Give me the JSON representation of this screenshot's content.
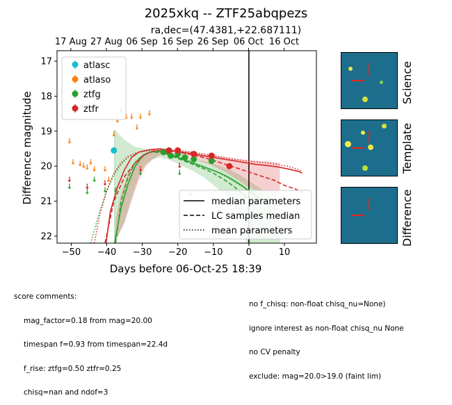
{
  "chart_data": {
    "type": "scatter",
    "title": "2025xkq -- ZTF25abqpezs",
    "subtitle": "ra,dec=(47.4381,+22.687111)",
    "xlabel": "Days before 06-Oct-25 18:39",
    "ylabel": "Difference magnitude",
    "xlim": [
      -54,
      19
    ],
    "ylim": [
      22.2,
      16.7
    ],
    "x_ticks": [
      -50,
      -40,
      -30,
      -20,
      -10,
      0,
      10
    ],
    "y_ticks": [
      17,
      18,
      19,
      20,
      21,
      22
    ],
    "top_axis_ticks": [
      {
        "x": -50.1,
        "label": "17 Aug"
      },
      {
        "x": -40.1,
        "label": "27 Aug"
      },
      {
        "x": -30.1,
        "label": "06 Sep"
      },
      {
        "x": -20.1,
        "label": "16 Sep"
      },
      {
        "x": -10.1,
        "label": "26 Sep"
      },
      {
        "x": -0.1,
        "label": "06 Oct"
      },
      {
        "x": 9.9,
        "label": "16 Oct"
      }
    ],
    "reference_line_x": 0,
    "colors": {
      "atlasc": "#17becf",
      "atlaso": "#ff7f0e",
      "ztfg": "#2ca02c",
      "ztfr": "#d62728"
    },
    "legend_position": "top-left",
    "legend": [
      {
        "name": "atlasc",
        "color": "#17becf"
      },
      {
        "name": "atlaso",
        "color": "#ff7f0e"
      },
      {
        "name": "ztfg",
        "color": "#2ca02c"
      },
      {
        "name": "ztfr",
        "color": "#d62728"
      }
    ],
    "style_legend_position": "bottom-right",
    "style_legend": [
      {
        "label": "median parameters",
        "dash": "solid"
      },
      {
        "label": "LC samples median",
        "dash": "dashed"
      },
      {
        "label": "mean parameters",
        "dash": "dotted"
      }
    ],
    "upper_limits": {
      "atlaso": [
        [
          -50.5,
          19.2
        ],
        [
          -49.5,
          19.8
        ],
        [
          -47.5,
          19.85
        ],
        [
          -46.5,
          19.9
        ],
        [
          -45.5,
          19.95
        ],
        [
          -44.5,
          19.8
        ],
        [
          -43.5,
          20.0
        ],
        [
          -40.5,
          20.0
        ],
        [
          -39.5,
          20.3
        ],
        [
          -38.0,
          19.0
        ],
        [
          -37.0,
          18.6
        ],
        [
          -36.0,
          18.3
        ],
        [
          -34.5,
          18.5
        ],
        [
          -33.0,
          18.5
        ],
        [
          -31.5,
          18.8
        ],
        [
          -30.5,
          18.5
        ],
        [
          -28.0,
          18.4
        ]
      ],
      "ztfg": [
        [
          -50.5,
          20.5
        ],
        [
          -45.5,
          20.65
        ],
        [
          -43.5,
          20.3
        ],
        [
          -40.5,
          20.6
        ],
        [
          -37.5,
          20.6
        ],
        [
          -30.5,
          20.1
        ],
        [
          -19.5,
          20.1
        ],
        [
          -16.5,
          20.7
        ]
      ],
      "ztfr": [
        [
          -50.5,
          20.3
        ],
        [
          -45.5,
          20.5
        ],
        [
          -40.5,
          20.4
        ],
        [
          -30.5,
          20.0
        ],
        [
          -19.5,
          19.9
        ]
      ]
    },
    "detections": {
      "atlasc": [
        [
          -38.0,
          19.55,
          0.08
        ]
      ],
      "ztfg": [
        [
          -24.0,
          19.6,
          0.05
        ],
        [
          -22.0,
          19.7,
          0.05
        ],
        [
          -20.0,
          19.65,
          0.05
        ],
        [
          -18.0,
          19.75,
          0.05
        ],
        [
          -15.5,
          19.8,
          0.05
        ],
        [
          -10.5,
          19.85,
          0.06
        ]
      ],
      "ztfr": [
        [
          -22.5,
          19.55,
          0.06
        ],
        [
          -20.0,
          19.55,
          0.06
        ],
        [
          -15.5,
          19.65,
          0.06
        ],
        [
          -10.5,
          19.7,
          0.06
        ],
        [
          -5.5,
          20.0,
          0.07
        ]
      ]
    },
    "model_curves": {
      "ztfr_median": [
        [
          -40.2,
          22.2
        ],
        [
          -39,
          21.3
        ],
        [
          -37,
          20.6
        ],
        [
          -35,
          20.1
        ],
        [
          -33,
          19.75
        ],
        [
          -31,
          19.6
        ],
        [
          -28,
          19.53
        ],
        [
          -25,
          19.5
        ],
        [
          -22,
          19.55
        ],
        [
          -19,
          19.6
        ],
        [
          -16,
          19.65
        ],
        [
          -13,
          19.7
        ],
        [
          -10,
          19.75
        ],
        [
          -7,
          19.8
        ],
        [
          -4,
          19.85
        ],
        [
          -1,
          19.9
        ],
        [
          2,
          19.95
        ],
        [
          5,
          19.98
        ],
        [
          8,
          20.02
        ],
        [
          11,
          20.08
        ],
        [
          14,
          20.15
        ],
        [
          15,
          20.2
        ]
      ],
      "ztfr_samples": [
        [
          -40.5,
          22.2
        ],
        [
          -38,
          21.0
        ],
        [
          -35,
          20.3
        ],
        [
          -32,
          19.9
        ],
        [
          -29,
          19.65
        ],
        [
          -26,
          19.55
        ],
        [
          -23,
          19.55
        ],
        [
          -20,
          19.6
        ],
        [
          -17,
          19.65
        ],
        [
          -14,
          19.72
        ],
        [
          -11,
          19.8
        ],
        [
          -8,
          19.9
        ],
        [
          -5,
          20.0
        ],
        [
          -2,
          20.1
        ],
        [
          1,
          20.2
        ],
        [
          4,
          20.3
        ],
        [
          7,
          20.4
        ],
        [
          10,
          20.55
        ],
        [
          13,
          20.65
        ],
        [
          15,
          20.75
        ]
      ],
      "ztfr_mean": [
        [
          -43.5,
          22.2
        ],
        [
          -42,
          21.4
        ],
        [
          -40,
          20.7
        ],
        [
          -38,
          20.2
        ],
        [
          -36,
          19.9
        ],
        [
          -34,
          19.72
        ],
        [
          -31,
          19.6
        ],
        [
          -28,
          19.55
        ],
        [
          -25,
          19.54
        ],
        [
          -22,
          19.56
        ],
        [
          -19,
          19.58
        ],
        [
          -16,
          19.6
        ],
        [
          -13,
          19.65
        ],
        [
          -10,
          19.7
        ],
        [
          -7,
          19.75
        ],
        [
          -4,
          19.8
        ],
        [
          -1,
          19.85
        ],
        [
          2,
          19.88
        ],
        [
          5,
          19.9
        ],
        [
          8,
          19.95
        ],
        [
          11,
          20.0
        ],
        [
          14,
          20.1
        ],
        [
          15,
          20.15
        ]
      ],
      "ztfg_median": [
        [
          -37.8,
          22.2
        ],
        [
          -36,
          21.2
        ],
        [
          -34,
          20.5
        ],
        [
          -32,
          20.0
        ],
        [
          -30,
          19.72
        ],
        [
          -28,
          19.6
        ],
        [
          -26,
          19.57
        ],
        [
          -24,
          19.6
        ],
        [
          -22,
          19.67
        ],
        [
          -20,
          19.75
        ],
        [
          -18,
          19.83
        ],
        [
          -16,
          19.9
        ],
        [
          -14,
          19.98
        ],
        [
          -12,
          20.05
        ],
        [
          -10,
          20.12
        ],
        [
          -8,
          20.2
        ],
        [
          -6,
          20.3
        ],
        [
          -4,
          20.42
        ],
        [
          -2,
          20.55
        ],
        [
          0,
          20.7
        ],
        [
          2,
          20.85
        ],
        [
          3.5,
          20.95
        ]
      ],
      "ztfg_samples": [
        [
          -37.5,
          22.2
        ],
        [
          -36,
          21.0
        ],
        [
          -34,
          20.3
        ],
        [
          -32,
          19.9
        ],
        [
          -30,
          19.7
        ],
        [
          -28,
          19.6
        ],
        [
          -26,
          19.6
        ],
        [
          -24,
          19.63
        ],
        [
          -22,
          19.7
        ],
        [
          -20,
          19.78
        ],
        [
          -18,
          19.86
        ],
        [
          -16,
          19.94
        ],
        [
          -14,
          20.02
        ],
        [
          -12,
          20.1
        ],
        [
          -10,
          20.2
        ],
        [
          -8,
          20.32
        ],
        [
          -6,
          20.45
        ],
        [
          -4,
          20.6
        ],
        [
          -2,
          20.78
        ],
        [
          0,
          20.95
        ],
        [
          1,
          21.05
        ]
      ],
      "ztfg_mean": [
        [
          -44.5,
          22.2
        ],
        [
          -42,
          21.3
        ],
        [
          -40,
          20.7
        ],
        [
          -38,
          20.25
        ],
        [
          -36,
          19.95
        ],
        [
          -34,
          19.75
        ],
        [
          -32,
          19.63
        ],
        [
          -30,
          19.57
        ],
        [
          -28,
          19.55
        ],
        [
          -26,
          19.56
        ],
        [
          -24,
          19.6
        ],
        [
          -22,
          19.65
        ],
        [
          -20,
          19.72
        ],
        [
          -18,
          19.8
        ],
        [
          -16,
          19.88
        ],
        [
          -14,
          19.96
        ],
        [
          -12,
          20.04
        ],
        [
          -10,
          20.12
        ],
        [
          -8,
          20.22
        ],
        [
          -6,
          20.33
        ],
        [
          -4,
          20.45
        ],
        [
          -2,
          20.58
        ],
        [
          0,
          20.72
        ]
      ]
    },
    "bands": {
      "ztfg_upper": [
        [
          -37.8,
          18.95
        ],
        [
          -35,
          19.25
        ],
        [
          -32,
          19.45
        ],
        [
          -29,
          19.5
        ],
        [
          -26,
          19.55
        ],
        [
          -23,
          19.62
        ],
        [
          -20,
          19.7
        ],
        [
          -17,
          19.75
        ],
        [
          -14,
          19.82
        ],
        [
          -11,
          19.9
        ],
        [
          -8,
          20.0
        ],
        [
          -5,
          20.12
        ],
        [
          -2,
          20.28
        ],
        [
          0,
          20.42
        ],
        [
          2,
          20.55
        ],
        [
          4,
          20.7
        ],
        [
          6,
          20.8
        ],
        [
          8.7,
          20.9
        ]
      ],
      "ztfg_lower": [
        [
          -37.8,
          22.2
        ],
        [
          -35,
          21.6
        ],
        [
          -33,
          20.9
        ],
        [
          -31,
          20.3
        ],
        [
          -29,
          19.95
        ],
        [
          -27,
          19.8
        ],
        [
          -25,
          19.75
        ],
        [
          -23,
          19.8
        ],
        [
          -21,
          19.88
        ],
        [
          -19,
          19.98
        ],
        [
          -17,
          20.08
        ],
        [
          -15,
          20.18
        ],
        [
          -13,
          20.3
        ],
        [
          -11,
          20.45
        ],
        [
          -9,
          20.62
        ],
        [
          -7,
          20.82
        ],
        [
          -5,
          21.05
        ],
        [
          -3.5,
          21.3
        ],
        [
          -2,
          21.6
        ],
        [
          -1,
          22.0
        ],
        [
          -0.7,
          22.2
        ],
        [
          8.7,
          22.2
        ]
      ],
      "ztfr_upper": [
        [
          -37.8,
          22.2
        ],
        [
          -37.5,
          21.5
        ],
        [
          -36,
          20.8
        ],
        [
          -34,
          20.2
        ],
        [
          -32,
          19.85
        ],
        [
          -30,
          19.65
        ],
        [
          -27,
          19.55
        ],
        [
          -24,
          19.5
        ],
        [
          -21,
          19.52
        ],
        [
          -18,
          19.55
        ],
        [
          -15,
          19.6
        ],
        [
          -12,
          19.65
        ],
        [
          -9,
          19.7
        ],
        [
          -6,
          19.75
        ],
        [
          -3,
          19.8
        ],
        [
          0,
          19.82
        ],
        [
          3,
          19.85
        ],
        [
          6,
          19.87
        ],
        [
          8.7,
          19.9
        ]
      ],
      "ztfr_lower": [
        [
          -37.8,
          22.2
        ],
        [
          -35,
          21.6
        ],
        [
          -33,
          21.0
        ],
        [
          -31,
          20.4
        ],
        [
          -29,
          20.0
        ],
        [
          -27,
          19.8
        ],
        [
          -25,
          19.68
        ],
        [
          -23,
          19.62
        ],
        [
          -21,
          19.65
        ],
        [
          -19,
          19.7
        ],
        [
          -17,
          19.75
        ],
        [
          -15,
          19.8
        ],
        [
          -13,
          19.88
        ],
        [
          -11,
          19.95
        ],
        [
          -9,
          20.05
        ],
        [
          -7,
          20.15
        ],
        [
          -5,
          20.28
        ],
        [
          -3,
          20.4
        ],
        [
          -1,
          20.55
        ],
        [
          1,
          20.65
        ],
        [
          3,
          20.72
        ],
        [
          5,
          20.78
        ],
        [
          7,
          20.8
        ],
        [
          8.7,
          20.82
        ]
      ]
    }
  },
  "thumbnails": [
    {
      "label": "Science"
    },
    {
      "label": "Template"
    },
    {
      "label": "Difference"
    }
  ],
  "score_comments": {
    "heading": "score comments:",
    "left_lines": [
      "mag_factor=0.18 from mag=20.00",
      "timespan f=0.93 from timespan=22.4d",
      "f_rise: ztfg=0.50 ztfr=0.25",
      "chisq=nan and ndof=3"
    ],
    "right_lines": [
      "no f_chisq: non-float chisq_nu=None)",
      "ignore interest as non-float chisq_nu None",
      "no CV penalty",
      "exclude: mag=20.0>19.0 (faint lim)"
    ]
  }
}
